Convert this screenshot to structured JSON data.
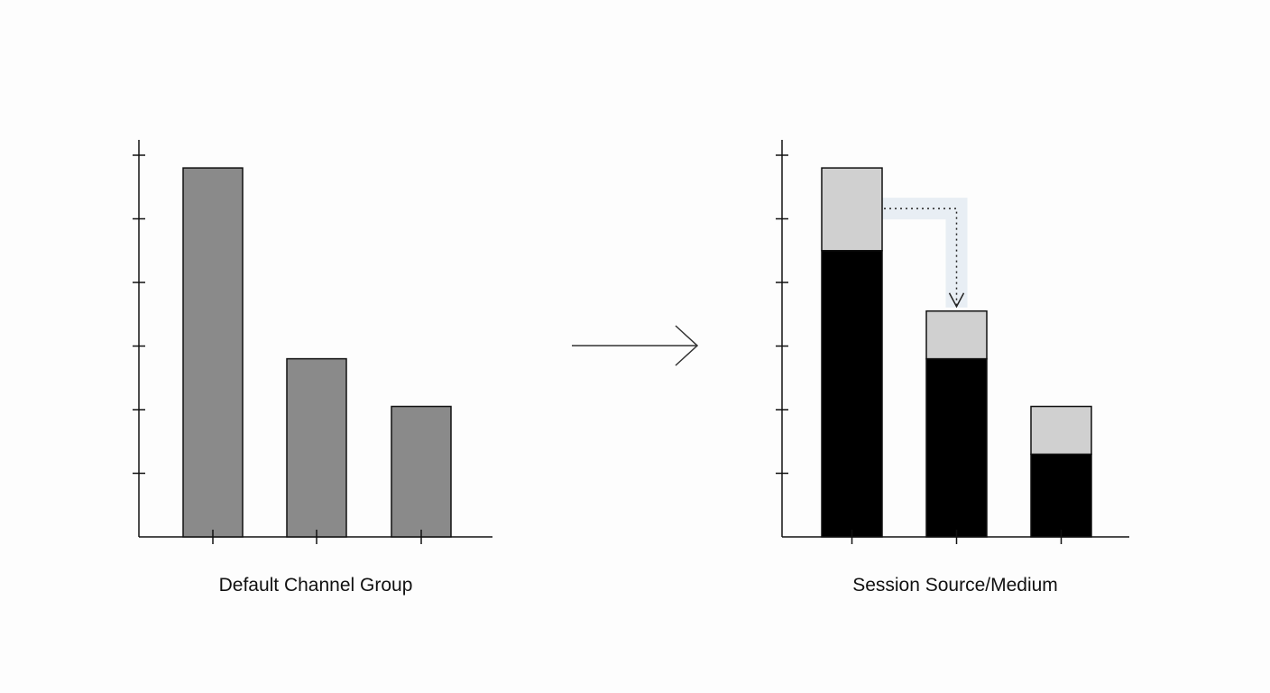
{
  "colors": {
    "background": "#fdfdfd",
    "axis": "#111111",
    "bar_outline": "#111111",
    "left_bar_fill": "#8a8a8a",
    "right_bar_base": "#000000",
    "right_bar_top": "#d0d0d0",
    "transfer_band": "#e8eef4",
    "arrow": "#333333"
  },
  "chart_data": [
    {
      "type": "bar",
      "xlabel": "Default Channel Group",
      "ylabel": "",
      "ylim": [
        0,
        6.2
      ],
      "y_ticks": [
        1,
        2,
        3,
        4,
        5,
        6
      ],
      "categories": [
        "",
        "",
        ""
      ],
      "series": [
        {
          "values": [
            5.8,
            2.8,
            2.05
          ]
        }
      ],
      "grid": false
    },
    {
      "type": "bar",
      "stacked": true,
      "xlabel": "Session Source/Medium",
      "ylabel": "",
      "ylim": [
        0,
        6.2
      ],
      "y_ticks": [
        1,
        2,
        3,
        4,
        5,
        6
      ],
      "categories": [
        "",
        "",
        ""
      ],
      "series": [
        {
          "values": [
            4.5,
            2.8,
            1.3
          ]
        },
        {
          "values": [
            1.3,
            0.75,
            0.75
          ]
        }
      ],
      "annotation": "dotted arrow from top of first bar's upper segment to top of second bar",
      "grid": false
    }
  ],
  "connector": {
    "icon": "right-arrow-icon"
  }
}
